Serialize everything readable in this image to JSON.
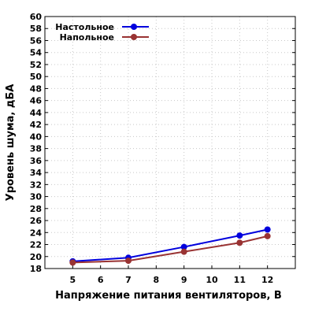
{
  "chart_data": {
    "type": "line",
    "title": "",
    "xlabel": "Напряжение питания вентиляторов, В",
    "ylabel": "Уровень шума, дБА",
    "xlim": [
      4,
      13
    ],
    "ylim": [
      18,
      60
    ],
    "x_ticks": [
      5,
      6,
      7,
      8,
      9,
      10,
      11,
      12
    ],
    "y_ticks": [
      18,
      20,
      22,
      24,
      26,
      28,
      30,
      32,
      34,
      36,
      38,
      40,
      42,
      44,
      46,
      48,
      50,
      52,
      54,
      56,
      58,
      60
    ],
    "grid": true,
    "legend_position": "top-left",
    "x": [
      5,
      7,
      9,
      11,
      12
    ],
    "series": [
      {
        "name": "Настольное",
        "color": "#0000dd",
        "values": [
          19.2,
          19.8,
          21.6,
          23.5,
          24.5
        ]
      },
      {
        "name": "Напольное",
        "color": "#993333",
        "values": [
          19.0,
          19.3,
          20.8,
          22.3,
          23.4
        ]
      }
    ]
  }
}
